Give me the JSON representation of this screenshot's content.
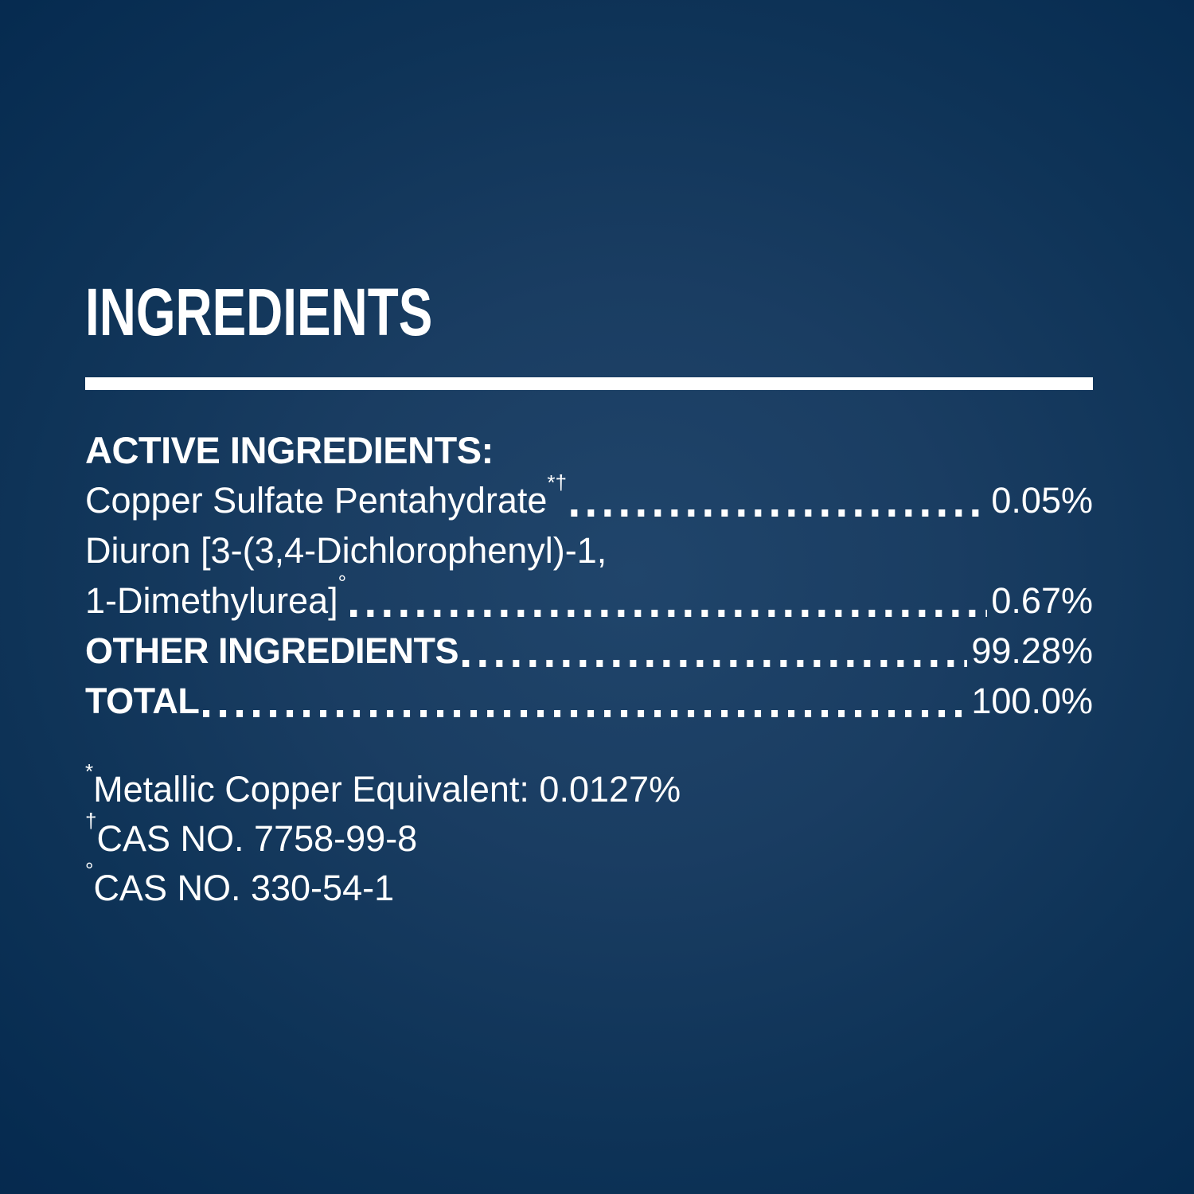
{
  "panel": {
    "title": "INGREDIENTS",
    "active_heading": "ACTIVE INGREDIENTS:"
  },
  "ingredients": {
    "rows": [
      {
        "label": "Copper Sulfate Pentahydrate",
        "marker": "*†",
        "value": "0.05%"
      },
      {
        "label": "Diuron [3-(3,4-Dichlorophenyl)-1,",
        "marker": "",
        "value": ""
      },
      {
        "label": "1-Dimethylurea]",
        "marker": "°",
        "value": "0.67%"
      },
      {
        "label": "OTHER INGREDIENTS",
        "marker": "",
        "value": "99.28%"
      },
      {
        "label": "TOTAL",
        "marker": "",
        "value": "100.0%"
      }
    ]
  },
  "footnotes": [
    {
      "marker": "*",
      "text": "Metallic Copper Equivalent: 0.0127%"
    },
    {
      "marker": "†",
      "text": "CAS NO. 7758-99-8"
    },
    {
      "marker": "°",
      "text": "CAS NO. 330-54-1"
    }
  ],
  "colors": {
    "background_center": "#20456b",
    "background_edge": "#03254a",
    "text": "#ffffff",
    "rule": "#ffffff"
  }
}
